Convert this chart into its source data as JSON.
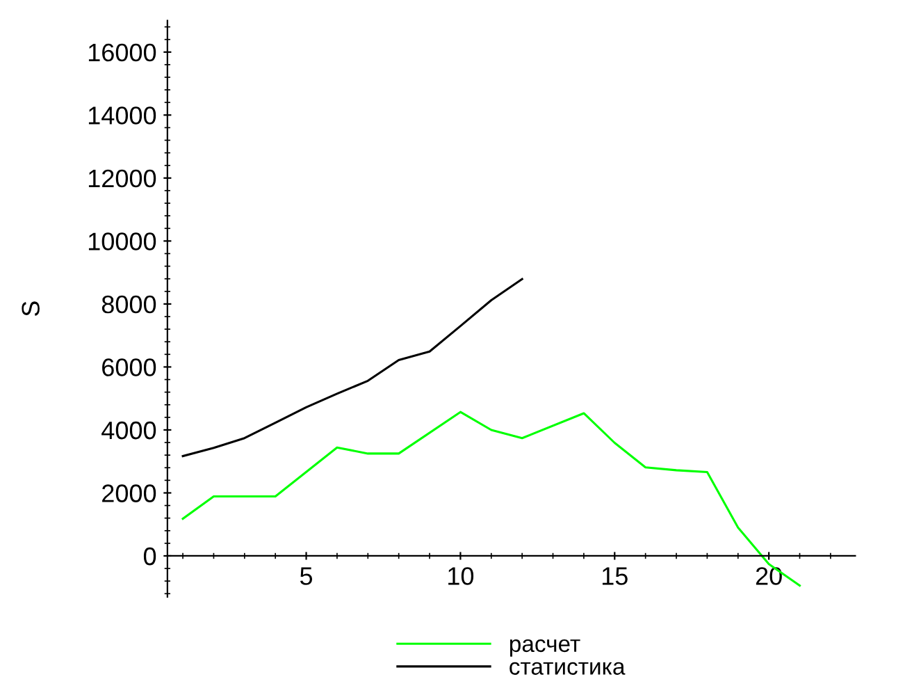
{
  "chart_data": {
    "type": "line",
    "ylabel": "S",
    "xlim": [
      0.5,
      22.8
    ],
    "ylim": [
      -1300,
      17000
    ],
    "xticks": [
      5,
      10,
      15,
      20
    ],
    "yticks": [
      0,
      2000,
      4000,
      6000,
      8000,
      10000,
      12000,
      14000,
      16000
    ],
    "grid": false,
    "legend": "bottom",
    "marker": "none",
    "line_style": "solid",
    "series": [
      {
        "name": "расчет",
        "color": "#00ff00",
        "x": [
          1,
          2,
          4,
          6,
          7,
          8,
          10,
          11,
          12,
          14,
          15,
          16,
          17,
          18,
          19,
          20,
          21
        ],
        "values": [
          1180,
          1890,
          1890,
          3440,
          3250,
          3250,
          4570,
          4000,
          3740,
          4530,
          3590,
          2810,
          2720,
          2660,
          900,
          -260,
          -940
        ]
      },
      {
        "name": "статистика",
        "color": "#000000",
        "x": [
          1,
          2,
          3,
          4,
          5,
          6,
          7,
          8,
          9,
          10,
          11,
          12
        ],
        "values": [
          3170,
          3430,
          3740,
          4230,
          4720,
          5150,
          5560,
          6220,
          6490,
          7300,
          8120,
          8790
        ]
      }
    ]
  }
}
